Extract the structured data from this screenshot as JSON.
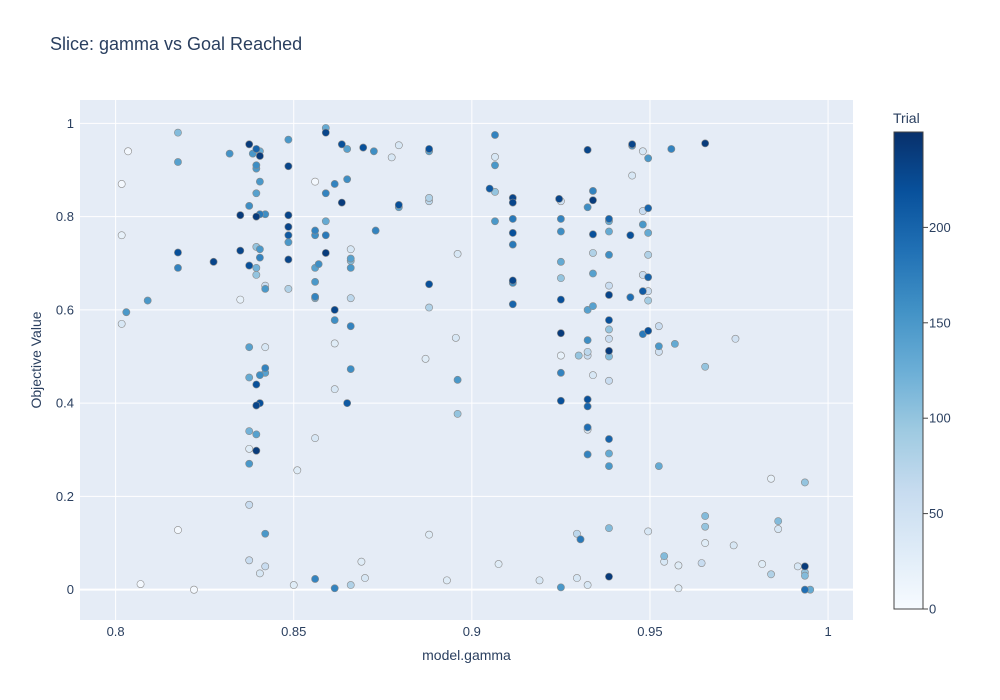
{
  "chart_data": {
    "type": "scatter",
    "title": "Slice: gamma vs Goal Reached",
    "xlabel": "model.gamma",
    "ylabel": "Objective Value",
    "xlim": [
      0.79,
      1.007
    ],
    "ylim": [
      -0.065,
      1.05
    ],
    "xticks": [
      "0.8",
      "0.85",
      "0.9",
      "0.95",
      "1"
    ],
    "xtick_values": [
      0.8,
      0.85,
      0.9,
      0.95,
      1.0
    ],
    "yticks": [
      "0",
      "0.2",
      "0.4",
      "0.6",
      "0.8",
      "1"
    ],
    "ytick_values": [
      0,
      0.2,
      0.4,
      0.6,
      0.8,
      1.0
    ],
    "grid": true,
    "colorbar": {
      "title": "Trial",
      "range": [
        0,
        250
      ],
      "ticks": [
        "0",
        "50",
        "100",
        "150",
        "200"
      ],
      "tick_values": [
        0,
        50,
        100,
        150,
        200
      ],
      "colorscale": [
        "#f7fbff",
        "#deebf7",
        "#c6dbef",
        "#9ecae1",
        "#6baed6",
        "#4292c6",
        "#2171b5",
        "#08519c",
        "#08306b"
      ]
    },
    "colors": {
      "background": "#e5ecf6",
      "grid": "#ffffff",
      "text": "#2a3f5f",
      "marker_outline": "#8a8a8a"
    },
    "points": [
      [
        0.8017,
        0.87,
        5
      ],
      [
        0.8017,
        0.76,
        20
      ],
      [
        0.8017,
        0.57,
        40
      ],
      [
        0.803,
        0.595,
        150
      ],
      [
        0.8035,
        0.94,
        5
      ],
      [
        0.807,
        0.012,
        5
      ],
      [
        0.809,
        0.62,
        150
      ],
      [
        0.8175,
        0.98,
        110
      ],
      [
        0.8175,
        0.917,
        140
      ],
      [
        0.8175,
        0.723,
        220
      ],
      [
        0.8175,
        0.69,
        170
      ],
      [
        0.8175,
        0.128,
        5
      ],
      [
        0.822,
        0.0,
        5
      ],
      [
        0.8275,
        0.703,
        230
      ],
      [
        0.832,
        0.935,
        155
      ],
      [
        0.835,
        0.803,
        240
      ],
      [
        0.835,
        0.727,
        230
      ],
      [
        0.835,
        0.622,
        20
      ],
      [
        0.8375,
        0.955,
        240
      ],
      [
        0.8385,
        0.935,
        150
      ],
      [
        0.8375,
        0.823,
        160
      ],
      [
        0.8375,
        0.695,
        220
      ],
      [
        0.8375,
        0.52,
        140
      ],
      [
        0.8375,
        0.455,
        130
      ],
      [
        0.8375,
        0.34,
        120
      ],
      [
        0.8375,
        0.302,
        30
      ],
      [
        0.8375,
        0.27,
        150
      ],
      [
        0.8375,
        0.182,
        60
      ],
      [
        0.8375,
        0.063,
        60
      ],
      [
        0.8395,
        0.945,
        200
      ],
      [
        0.8395,
        0.91,
        160
      ],
      [
        0.8395,
        0.903,
        150
      ],
      [
        0.8395,
        0.85,
        140
      ],
      [
        0.8395,
        0.8,
        240
      ],
      [
        0.8395,
        0.735,
        100
      ],
      [
        0.8395,
        0.69,
        120
      ],
      [
        0.8395,
        0.675,
        100
      ],
      [
        0.8395,
        0.44,
        220
      ],
      [
        0.8395,
        0.395,
        230
      ],
      [
        0.8395,
        0.333,
        140
      ],
      [
        0.8395,
        0.298,
        240
      ],
      [
        0.8405,
        0.94,
        130
      ],
      [
        0.8405,
        0.93,
        240
      ],
      [
        0.8405,
        0.875,
        150
      ],
      [
        0.8405,
        0.805,
        180
      ],
      [
        0.8405,
        0.73,
        150
      ],
      [
        0.8405,
        0.712,
        170
      ],
      [
        0.8405,
        0.46,
        160
      ],
      [
        0.8405,
        0.4,
        220
      ],
      [
        0.8405,
        0.035,
        40
      ],
      [
        0.842,
        0.805,
        160
      ],
      [
        0.842,
        0.652,
        60
      ],
      [
        0.842,
        0.645,
        150
      ],
      [
        0.842,
        0.52,
        40
      ],
      [
        0.842,
        0.475,
        170
      ],
      [
        0.842,
        0.465,
        140
      ],
      [
        0.842,
        0.12,
        150
      ],
      [
        0.842,
        0.05,
        60
      ],
      [
        0.8485,
        0.965,
        150
      ],
      [
        0.8485,
        0.908,
        230
      ],
      [
        0.8485,
        0.803,
        230
      ],
      [
        0.8485,
        0.778,
        230
      ],
      [
        0.8485,
        0.76,
        210
      ],
      [
        0.8485,
        0.745,
        150
      ],
      [
        0.8485,
        0.708,
        230
      ],
      [
        0.8485,
        0.645,
        80
      ],
      [
        0.85,
        0.01,
        30
      ],
      [
        0.851,
        0.256,
        30
      ],
      [
        0.856,
        0.875,
        5
      ],
      [
        0.856,
        0.77,
        170
      ],
      [
        0.856,
        0.76,
        160
      ],
      [
        0.856,
        0.69,
        140
      ],
      [
        0.856,
        0.66,
        150
      ],
      [
        0.856,
        0.628,
        170
      ],
      [
        0.856,
        0.625,
        120
      ],
      [
        0.856,
        0.325,
        40
      ],
      [
        0.856,
        0.023,
        170
      ],
      [
        0.857,
        0.698,
        160
      ],
      [
        0.859,
        0.99,
        130
      ],
      [
        0.859,
        0.98,
        230
      ],
      [
        0.859,
        0.85,
        170
      ],
      [
        0.859,
        0.79,
        130
      ],
      [
        0.859,
        0.76,
        180
      ],
      [
        0.859,
        0.722,
        240
      ],
      [
        0.8615,
        0.87,
        170
      ],
      [
        0.8615,
        0.6,
        230
      ],
      [
        0.8615,
        0.578,
        160
      ],
      [
        0.8615,
        0.528,
        30
      ],
      [
        0.8615,
        0.43,
        40
      ],
      [
        0.8615,
        0.003,
        170
      ],
      [
        0.8635,
        0.955,
        220
      ],
      [
        0.8635,
        0.83,
        240
      ],
      [
        0.865,
        0.945,
        140
      ],
      [
        0.865,
        0.88,
        160
      ],
      [
        0.865,
        0.4,
        210
      ],
      [
        0.866,
        0.73,
        40
      ],
      [
        0.866,
        0.71,
        140
      ],
      [
        0.866,
        0.705,
        110
      ],
      [
        0.866,
        0.69,
        150
      ],
      [
        0.866,
        0.625,
        70
      ],
      [
        0.866,
        0.565,
        170
      ],
      [
        0.866,
        0.473,
        160
      ],
      [
        0.866,
        0.01,
        80
      ],
      [
        0.869,
        0.06,
        30
      ],
      [
        0.8695,
        0.948,
        220
      ],
      [
        0.87,
        0.025,
        40
      ],
      [
        0.8725,
        0.94,
        160
      ],
      [
        0.873,
        0.77,
        170
      ],
      [
        0.8775,
        0.927,
        40
      ],
      [
        0.8795,
        0.953,
        40
      ],
      [
        0.8795,
        0.825,
        220
      ],
      [
        0.8795,
        0.82,
        140
      ],
      [
        0.887,
        0.495,
        30
      ],
      [
        0.888,
        0.945,
        220
      ],
      [
        0.888,
        0.94,
        140
      ],
      [
        0.888,
        0.84,
        80
      ],
      [
        0.888,
        0.833,
        70
      ],
      [
        0.888,
        0.655,
        220
      ],
      [
        0.888,
        0.605,
        80
      ],
      [
        0.888,
        0.118,
        30
      ],
      [
        0.893,
        0.02,
        30
      ],
      [
        0.896,
        0.72,
        40
      ],
      [
        0.8955,
        0.54,
        40
      ],
      [
        0.896,
        0.45,
        150
      ],
      [
        0.896,
        0.377,
        100
      ],
      [
        0.905,
        0.86,
        210
      ],
      [
        0.9065,
        0.975,
        170
      ],
      [
        0.9065,
        0.928,
        40
      ],
      [
        0.9065,
        0.91,
        150
      ],
      [
        0.9065,
        0.853,
        100
      ],
      [
        0.9065,
        0.79,
        150
      ],
      [
        0.9075,
        0.055,
        30
      ],
      [
        0.9115,
        0.84,
        230
      ],
      [
        0.9115,
        0.83,
        230
      ],
      [
        0.9115,
        0.795,
        180
      ],
      [
        0.9115,
        0.765,
        220
      ],
      [
        0.9115,
        0.74,
        180
      ],
      [
        0.9115,
        0.663,
        230
      ],
      [
        0.9115,
        0.658,
        160
      ],
      [
        0.9115,
        0.612,
        200
      ],
      [
        0.919,
        0.02,
        40
      ],
      [
        0.9245,
        0.838,
        230
      ],
      [
        0.925,
        0.833,
        50
      ],
      [
        0.925,
        0.795,
        170
      ],
      [
        0.925,
        0.768,
        160
      ],
      [
        0.925,
        0.703,
        130
      ],
      [
        0.925,
        0.668,
        100
      ],
      [
        0.925,
        0.622,
        220
      ],
      [
        0.925,
        0.55,
        240
      ],
      [
        0.925,
        0.502,
        20
      ],
      [
        0.925,
        0.465,
        170
      ],
      [
        0.925,
        0.405,
        220
      ],
      [
        0.925,
        0.005,
        150
      ],
      [
        0.9295,
        0.12,
        70
      ],
      [
        0.9295,
        0.025,
        40
      ],
      [
        0.93,
        0.502,
        100
      ],
      [
        0.9305,
        0.108,
        180
      ],
      [
        0.9325,
        0.943,
        230
      ],
      [
        0.9325,
        0.82,
        160
      ],
      [
        0.9325,
        0.6,
        140
      ],
      [
        0.9325,
        0.535,
        160
      ],
      [
        0.9325,
        0.51,
        70
      ],
      [
        0.9325,
        0.502,
        60
      ],
      [
        0.9325,
        0.408,
        220
      ],
      [
        0.9325,
        0.393,
        200
      ],
      [
        0.9325,
        0.348,
        190
      ],
      [
        0.9325,
        0.343,
        40
      ],
      [
        0.9325,
        0.29,
        170
      ],
      [
        0.9325,
        0.01,
        40
      ],
      [
        0.934,
        0.855,
        170
      ],
      [
        0.934,
        0.835,
        240
      ],
      [
        0.934,
        0.762,
        220
      ],
      [
        0.934,
        0.722,
        80
      ],
      [
        0.934,
        0.678,
        140
      ],
      [
        0.934,
        0.608,
        140
      ],
      [
        0.934,
        0.46,
        40
      ],
      [
        0.9385,
        0.795,
        200
      ],
      [
        0.9385,
        0.79,
        130
      ],
      [
        0.9385,
        0.768,
        130
      ],
      [
        0.9385,
        0.718,
        160
      ],
      [
        0.9385,
        0.652,
        60
      ],
      [
        0.9385,
        0.632,
        230
      ],
      [
        0.9385,
        0.578,
        220
      ],
      [
        0.9385,
        0.558,
        100
      ],
      [
        0.9385,
        0.538,
        60
      ],
      [
        0.9385,
        0.512,
        240
      ],
      [
        0.9385,
        0.5,
        110
      ],
      [
        0.9385,
        0.448,
        60
      ],
      [
        0.9385,
        0.323,
        200
      ],
      [
        0.9385,
        0.292,
        130
      ],
      [
        0.9385,
        0.265,
        150
      ],
      [
        0.9385,
        0.132,
        110
      ],
      [
        0.9385,
        0.028,
        240
      ],
      [
        0.945,
        0.955,
        230
      ],
      [
        0.945,
        0.952,
        150
      ],
      [
        0.945,
        0.888,
        40
      ],
      [
        0.9445,
        0.76,
        220
      ],
      [
        0.9445,
        0.627,
        190
      ],
      [
        0.948,
        0.94,
        40
      ],
      [
        0.948,
        0.812,
        60
      ],
      [
        0.948,
        0.783,
        150
      ],
      [
        0.948,
        0.675,
        60
      ],
      [
        0.948,
        0.64,
        210
      ],
      [
        0.948,
        0.548,
        180
      ],
      [
        0.9495,
        0.925,
        150
      ],
      [
        0.9495,
        0.818,
        200
      ],
      [
        0.9495,
        0.765,
        130
      ],
      [
        0.9495,
        0.718,
        80
      ],
      [
        0.9495,
        0.67,
        200
      ],
      [
        0.9495,
        0.64,
        60
      ],
      [
        0.9495,
        0.62,
        90
      ],
      [
        0.9495,
        0.555,
        220
      ],
      [
        0.9495,
        0.125,
        40
      ],
      [
        0.9525,
        0.565,
        60
      ],
      [
        0.9525,
        0.522,
        150
      ],
      [
        0.9525,
        0.51,
        50
      ],
      [
        0.9525,
        0.265,
        130
      ],
      [
        0.954,
        0.072,
        110
      ],
      [
        0.954,
        0.06,
        40
      ],
      [
        0.956,
        0.945,
        170
      ],
      [
        0.957,
        0.527,
        130
      ],
      [
        0.958,
        0.052,
        30
      ],
      [
        0.958,
        0.003,
        30
      ],
      [
        0.9655,
        0.957,
        240
      ],
      [
        0.9655,
        0.478,
        100
      ],
      [
        0.9655,
        0.158,
        110
      ],
      [
        0.9655,
        0.135,
        100
      ],
      [
        0.9655,
        0.1,
        30
      ],
      [
        0.9645,
        0.057,
        60
      ],
      [
        0.974,
        0.538,
        50
      ],
      [
        0.9735,
        0.095,
        40
      ],
      [
        0.9815,
        0.055,
        30
      ],
      [
        0.984,
        0.238,
        20
      ],
      [
        0.984,
        0.033,
        80
      ],
      [
        0.986,
        0.147,
        110
      ],
      [
        0.986,
        0.13,
        40
      ],
      [
        0.9915,
        0.05,
        40
      ],
      [
        0.9935,
        0.23,
        100
      ],
      [
        0.9935,
        0.05,
        240
      ],
      [
        0.9935,
        0.037,
        100
      ],
      [
        0.9935,
        0.03,
        110
      ],
      [
        0.9935,
        0.0,
        190
      ],
      [
        0.995,
        0.0,
        130
      ]
    ]
  }
}
